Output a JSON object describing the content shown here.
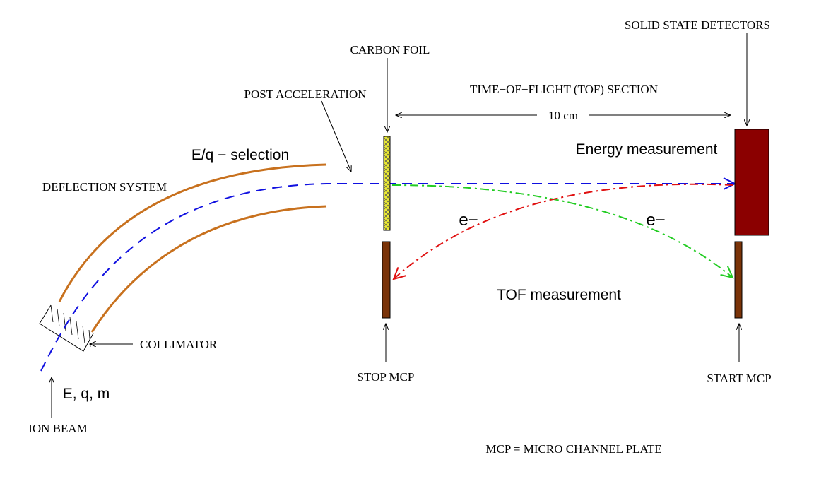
{
  "colors": {
    "deflector": "#c8711e",
    "beam": "#1010e0",
    "green_path": "#22cc22",
    "red_path": "#e01010",
    "foil": "#ecec30",
    "detector": "#8b0000",
    "mcp": "#7a3308",
    "magenta": "#b0249c",
    "pink": "#e020e0"
  },
  "labels": {
    "solid_state_detectors": "SOLID STATE DETECTORS",
    "carbon_foil": "CARBON FOIL",
    "post_acceleration": "POST ACCELERATION",
    "tof_section": "TIME−OF−FLIGHT (TOF) SECTION",
    "distance": "10 cm",
    "eq_selection": "E/q − selection",
    "deflection_system": "DEFLECTION SYSTEM",
    "energy_measurement": "Energy measurement",
    "electron_left": "e−",
    "electron_right": "e−",
    "tof_measurement": "TOF measurement",
    "collimator": "COLLIMATOR",
    "ion_params": "E, q, m",
    "ion_beam": "ION BEAM",
    "stop_mcp": "STOP MCP",
    "start_mcp": "START MCP",
    "mcp_definition": "MCP = MICRO CHANNEL PLATE"
  }
}
